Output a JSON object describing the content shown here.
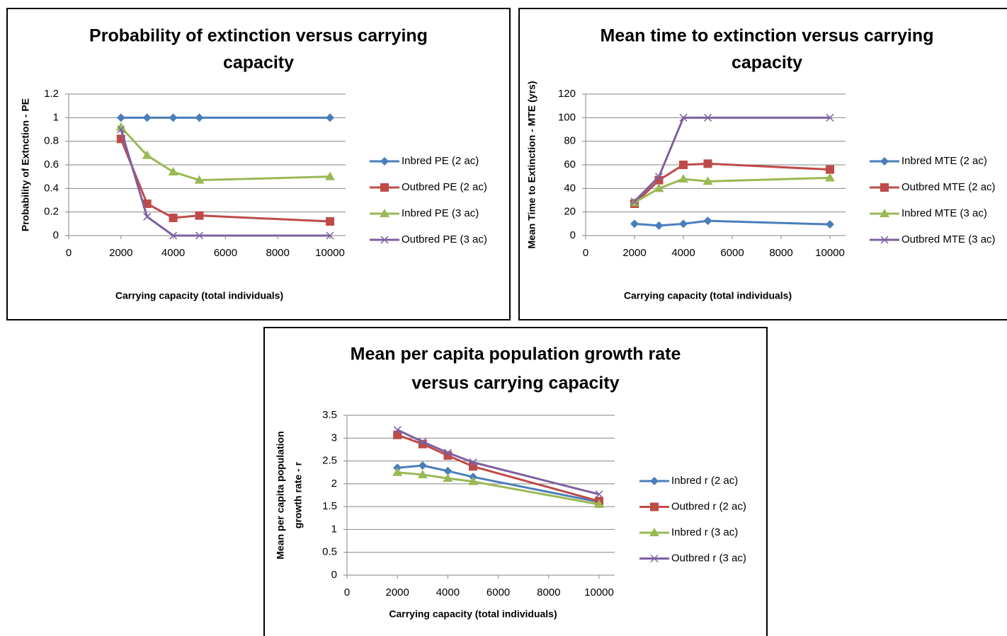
{
  "chart_data": [
    {
      "type": "line",
      "title": [
        "Probability of extinction versus carrying",
        "capacity"
      ],
      "xlabel": "Carrying capacity  (total individuals)",
      "ylabel": [
        "Probability of Extnction - PE"
      ],
      "x": [
        2000,
        3000,
        4000,
        5000,
        10000
      ],
      "xlim": [
        0,
        10000
      ],
      "xticks": [
        0,
        2000,
        4000,
        6000,
        8000,
        10000
      ],
      "ylim": [
        0,
        1.2
      ],
      "yticks": [
        0,
        0.2,
        0.4,
        0.6,
        0.8,
        1,
        1.2
      ],
      "grid": true,
      "series": [
        {
          "name": "Inbred PE (2 ac)",
          "color": "#4a7ebb",
          "marker": "diamond",
          "values": [
            1,
            1,
            1,
            1,
            1
          ]
        },
        {
          "name": "Outbred PE (2 ac)",
          "color": "#be4b48",
          "marker": "square",
          "values": [
            0.82,
            0.27,
            0.15,
            0.17,
            0.12
          ]
        },
        {
          "name": "Inbred PE (3 ac)",
          "color": "#98b954",
          "marker": "triangle",
          "values": [
            0.92,
            0.68,
            0.54,
            0.47,
            0.5
          ]
        },
        {
          "name": "Outbred PE (3 ac)",
          "color": "#7d60a0",
          "marker": "x",
          "values": [
            0.9,
            0.16,
            0,
            0,
            0
          ]
        }
      ]
    },
    {
      "type": "line",
      "title": [
        "Mean time to extinction versus carrying",
        "capacity"
      ],
      "xlabel": "Carrying capacity  (total individuals)",
      "ylabel": [
        "Mean Time to Extinction - MTE (yrs)"
      ],
      "x": [
        2000,
        3000,
        4000,
        5000,
        10000
      ],
      "xlim": [
        0,
        10000
      ],
      "xticks": [
        0,
        2000,
        4000,
        6000,
        8000,
        10000
      ],
      "ylim": [
        0,
        120
      ],
      "yticks": [
        0,
        20,
        40,
        60,
        80,
        100,
        120
      ],
      "grid": true,
      "series": [
        {
          "name": "Inbred MTE (2 ac)",
          "color": "#4a7ebb",
          "marker": "diamond",
          "values": [
            10,
            8.5,
            10,
            12.5,
            9.5
          ]
        },
        {
          "name": "Outbred MTE (2 ac)",
          "color": "#be4b48",
          "marker": "square",
          "values": [
            27,
            47,
            60,
            61,
            56
          ]
        },
        {
          "name": "Inbred MTE (3 ac)",
          "color": "#98b954",
          "marker": "triangle",
          "values": [
            28,
            40,
            48,
            46,
            49
          ]
        },
        {
          "name": "Outbred MTE (3 ac)",
          "color": "#7d60a0",
          "marker": "x",
          "values": [
            29,
            50,
            100,
            100,
            100
          ]
        }
      ]
    },
    {
      "type": "line",
      "title": [
        "Mean per capita population  growth rate",
        "versus carrying capacity"
      ],
      "xlabel": "Carrying capacity  (total individuals)",
      "ylabel": [
        "Mean per capita population",
        "growth rate - r"
      ],
      "x": [
        2000,
        3000,
        4000,
        5000,
        10000
      ],
      "xlim": [
        0,
        10000
      ],
      "xticks": [
        0,
        2000,
        4000,
        6000,
        8000,
        10000
      ],
      "ylim": [
        0,
        3.5
      ],
      "yticks": [
        0,
        0.5,
        1,
        1.5,
        2,
        2.5,
        3,
        3.5
      ],
      "grid": true,
      "series": [
        {
          "name": "Inbred r (2 ac)",
          "color": "#4a7ebb",
          "marker": "diamond",
          "values": [
            2.35,
            2.4,
            2.28,
            2.15,
            1.6
          ]
        },
        {
          "name": "Outbred r (2 ac)",
          "color": "#be4b48",
          "marker": "square",
          "values": [
            3.07,
            2.87,
            2.62,
            2.38,
            1.62
          ]
        },
        {
          "name": "Inbred r (3 ac)",
          "color": "#98b954",
          "marker": "triangle",
          "values": [
            2.25,
            2.2,
            2.12,
            2.05,
            1.55
          ]
        },
        {
          "name": "Outbred r (3 ac)",
          "color": "#7d60a0",
          "marker": "x",
          "values": [
            3.18,
            2.92,
            2.68,
            2.47,
            1.77
          ]
        }
      ]
    }
  ]
}
